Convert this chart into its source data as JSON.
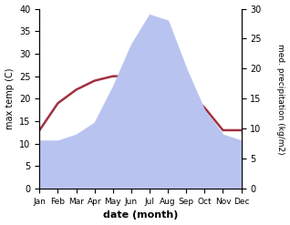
{
  "months": [
    "Jan",
    "Feb",
    "Mar",
    "Apr",
    "May",
    "Jun",
    "Jul",
    "Aug",
    "Sep",
    "Oct",
    "Nov",
    "Dec"
  ],
  "temperature": [
    13,
    19,
    22,
    24,
    25,
    25,
    28,
    28,
    22,
    18,
    13,
    13
  ],
  "precipitation": [
    8,
    8,
    9,
    11,
    17,
    24,
    29,
    28,
    20,
    13,
    9,
    8
  ],
  "temp_color": "#a03040",
  "precip_fill_color": "#b8c4ef",
  "left_ylim": [
    0,
    40
  ],
  "right_ylim": [
    0,
    30
  ],
  "left_ylabel": "max temp (C)",
  "right_ylabel": "med. precipitation (kg/m2)",
  "xlabel": "date (month)",
  "figsize": [
    3.18,
    2.47
  ],
  "dpi": 100
}
